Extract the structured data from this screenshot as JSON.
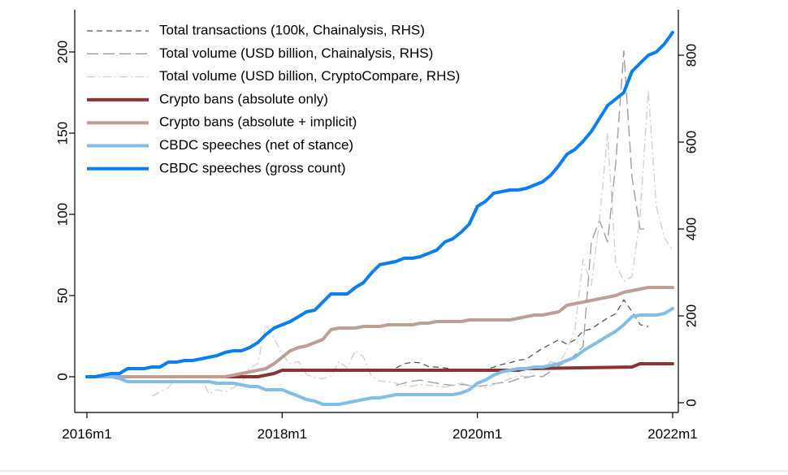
{
  "chart_data": {
    "type": "line",
    "title": "",
    "xlabel": "",
    "ylabel": "",
    "ylabel_right": "",
    "x_unit": "month",
    "x_ticks": [
      {
        "x": 0,
        "label": "2016m1"
      },
      {
        "x": 24,
        "label": "2018m1"
      },
      {
        "x": 48,
        "label": "2020m1"
      },
      {
        "x": 72,
        "label": "2022m1"
      }
    ],
    "xlim": [
      0,
      72
    ],
    "ylim_left": [
      -20,
      222
    ],
    "yticks_left": [
      0,
      50,
      100,
      150,
      200
    ],
    "ylim_right": [
      -5,
      860
    ],
    "yticks_right": [
      0,
      200,
      400,
      600,
      800
    ],
    "legend_position": "top-left",
    "grid": false,
    "series": [
      {
        "name": "Total transactions (100k, Chainalysis, RHS)",
        "axis": "right",
        "color": "#555555",
        "width": 1.3,
        "dash": "7,5",
        "x": [
          38,
          39,
          40,
          41,
          42,
          43,
          44,
          45,
          46,
          47,
          48,
          49,
          50,
          51,
          52,
          53,
          54,
          55,
          56,
          57,
          58,
          59,
          60,
          61,
          62,
          63,
          64,
          65,
          66,
          67,
          68,
          69
        ],
        "y": [
          80,
          90,
          93,
          92,
          83,
          82,
          80,
          77,
          75,
          73,
          72,
          76,
          82,
          88,
          92,
          98,
          100,
          113,
          125,
          135,
          145,
          135,
          145,
          165,
          170,
          183,
          195,
          205,
          237,
          210,
          180,
          175
        ]
      },
      {
        "name": "Total volume (USD billion, Chainalysis, RHS)",
        "axis": "right",
        "color": "#9a9a9a",
        "width": 1.3,
        "dash": "14,6",
        "x": [
          38,
          39,
          40,
          41,
          42,
          43,
          44,
          45,
          46,
          47,
          48,
          49,
          50,
          51,
          52,
          53,
          54,
          55,
          56,
          57,
          58,
          59,
          60,
          61,
          62,
          63,
          64,
          65,
          66,
          67,
          68,
          69
        ],
        "y": [
          40,
          45,
          50,
          52,
          48,
          45,
          42,
          40,
          42,
          40,
          38,
          40,
          44,
          46,
          48,
          55,
          58,
          62,
          60,
          72,
          85,
          95,
          110,
          130,
          370,
          420,
          370,
          550,
          810,
          520,
          400,
          400
        ]
      },
      {
        "name": "Total volume (USD billion, CryptoCompare, RHS)",
        "axis": "right",
        "color": "#cfcfcf",
        "width": 1.3,
        "dash": "10,4,2,4",
        "x": [
          8,
          9,
          10,
          11,
          12,
          13,
          14,
          15,
          16,
          17,
          18,
          19,
          20,
          21,
          22,
          23,
          24,
          25,
          26,
          27,
          28,
          29,
          30,
          31,
          32,
          33,
          34,
          35,
          36,
          37,
          38,
          39,
          40,
          41,
          42,
          43,
          44,
          45,
          46,
          47,
          48,
          49,
          50,
          51,
          52,
          53,
          54,
          55,
          56,
          57,
          58,
          59,
          60,
          61,
          62,
          63,
          64,
          65,
          66,
          67,
          68,
          69,
          70,
          71,
          72
        ],
        "y": [
          15,
          25,
          35,
          55,
          60,
          62,
          60,
          20,
          30,
          25,
          35,
          45,
          80,
          90,
          180,
          150,
          110,
          90,
          95,
          65,
          58,
          55,
          62,
          95,
          80,
          120,
          105,
          60,
          50,
          48,
          45,
          40,
          38,
          42,
          40,
          38,
          36,
          40,
          45,
          40,
          38,
          35,
          42,
          48,
          55,
          62,
          60,
          75,
          80,
          95,
          90,
          120,
          170,
          330,
          270,
          420,
          620,
          320,
          280,
          290,
          430,
          720,
          450,
          380,
          350
        ]
      },
      {
        "name": "Crypto bans (absolute only)",
        "axis": "left",
        "color": "#8b3232",
        "width": 4,
        "x": [
          0,
          19,
          20,
          21,
          22,
          23,
          24,
          48,
          53,
          54,
          67,
          68,
          72
        ],
        "y": [
          0,
          0,
          0,
          0,
          1,
          2,
          4,
          4,
          4,
          5,
          6,
          8,
          8
        ]
      },
      {
        "name": "Crypto bans (absolute + implicit)",
        "axis": "left",
        "color": "#bf9e96",
        "width": 4,
        "x": [
          0,
          17,
          18,
          19,
          20,
          21,
          22,
          23,
          24,
          25,
          26,
          27,
          28,
          29,
          30,
          31,
          32,
          33,
          34,
          35,
          36,
          37,
          38,
          39,
          40,
          41,
          42,
          43,
          44,
          45,
          46,
          47,
          48,
          49,
          50,
          51,
          52,
          53,
          54,
          55,
          56,
          57,
          58,
          59,
          60,
          61,
          62,
          63,
          64,
          65,
          66,
          67,
          68,
          69,
          70,
          71,
          72
        ],
        "y": [
          0,
          0,
          1,
          2,
          3,
          4,
          5,
          8,
          12,
          16,
          18,
          19,
          21,
          23,
          29,
          30,
          30,
          30,
          31,
          31,
          31,
          32,
          32,
          32,
          32,
          33,
          33,
          34,
          34,
          34,
          34,
          35,
          35,
          35,
          35,
          35,
          35,
          36,
          37,
          38,
          38,
          39,
          40,
          44,
          45,
          46,
          47,
          48,
          49,
          50,
          52,
          53,
          54,
          55,
          55,
          55,
          55
        ]
      },
      {
        "name": "CBDC speeches (net of stance)",
        "axis": "left",
        "color": "#80bfe8",
        "width": 4,
        "x": [
          0,
          1,
          2,
          3,
          4,
          5,
          6,
          7,
          8,
          9,
          10,
          11,
          12,
          13,
          14,
          15,
          16,
          17,
          18,
          19,
          20,
          21,
          22,
          23,
          24,
          25,
          26,
          27,
          28,
          29,
          30,
          31,
          32,
          33,
          34,
          35,
          36,
          37,
          38,
          39,
          40,
          41,
          42,
          43,
          44,
          45,
          46,
          47,
          48,
          49,
          50,
          51,
          52,
          53,
          54,
          55,
          56,
          57,
          58,
          59,
          60,
          61,
          62,
          63,
          64,
          65,
          66,
          67,
          68,
          69,
          70,
          71,
          72
        ],
        "y": [
          0,
          0,
          0,
          0,
          -1,
          -3,
          -3,
          -3,
          -3,
          -3,
          -3,
          -3,
          -3,
          -3,
          -3,
          -3,
          -4,
          -4,
          -4,
          -5,
          -6,
          -6,
          -8,
          -8,
          -8,
          -10,
          -12,
          -14,
          -15,
          -17,
          -17,
          -17,
          -16,
          -15,
          -14,
          -13,
          -13,
          -12,
          -11,
          -11,
          -11,
          -11,
          -11,
          -11,
          -11,
          -11,
          -10,
          -8,
          -4,
          -2,
          1,
          3,
          4,
          5,
          5,
          6,
          6,
          7,
          8,
          10,
          12,
          16,
          19,
          22,
          25,
          28,
          32,
          37,
          38,
          38,
          38,
          39,
          42
        ]
      },
      {
        "name": "CBDC speeches (gross count)",
        "axis": "left",
        "color": "#0a7ff0",
        "width": 4,
        "x": [
          0,
          1,
          2,
          3,
          4,
          5,
          6,
          7,
          8,
          9,
          10,
          11,
          12,
          13,
          14,
          15,
          16,
          17,
          18,
          19,
          20,
          21,
          22,
          23,
          24,
          25,
          26,
          27,
          28,
          29,
          30,
          31,
          32,
          33,
          34,
          35,
          36,
          37,
          38,
          39,
          40,
          41,
          42,
          43,
          44,
          45,
          46,
          47,
          48,
          49,
          50,
          51,
          52,
          53,
          54,
          55,
          56,
          57,
          58,
          59,
          60,
          61,
          62,
          63,
          64,
          65,
          66,
          67,
          68,
          69,
          70,
          71,
          72
        ],
        "y": [
          0,
          0,
          1,
          2,
          2,
          5,
          5,
          5,
          6,
          6,
          9,
          9,
          10,
          10,
          11,
          12,
          13,
          15,
          16,
          16,
          18,
          21,
          26,
          30,
          32,
          34,
          37,
          40,
          41,
          46,
          51,
          51,
          51,
          55,
          58,
          64,
          69,
          70,
          71,
          73,
          73,
          74,
          76,
          78,
          83,
          85,
          89,
          94,
          105,
          108,
          113,
          114,
          115,
          115,
          116,
          118,
          120,
          124,
          130,
          137,
          140,
          145,
          151,
          159,
          167,
          171,
          175,
          188,
          193,
          198,
          200,
          205,
          212
        ]
      }
    ]
  }
}
